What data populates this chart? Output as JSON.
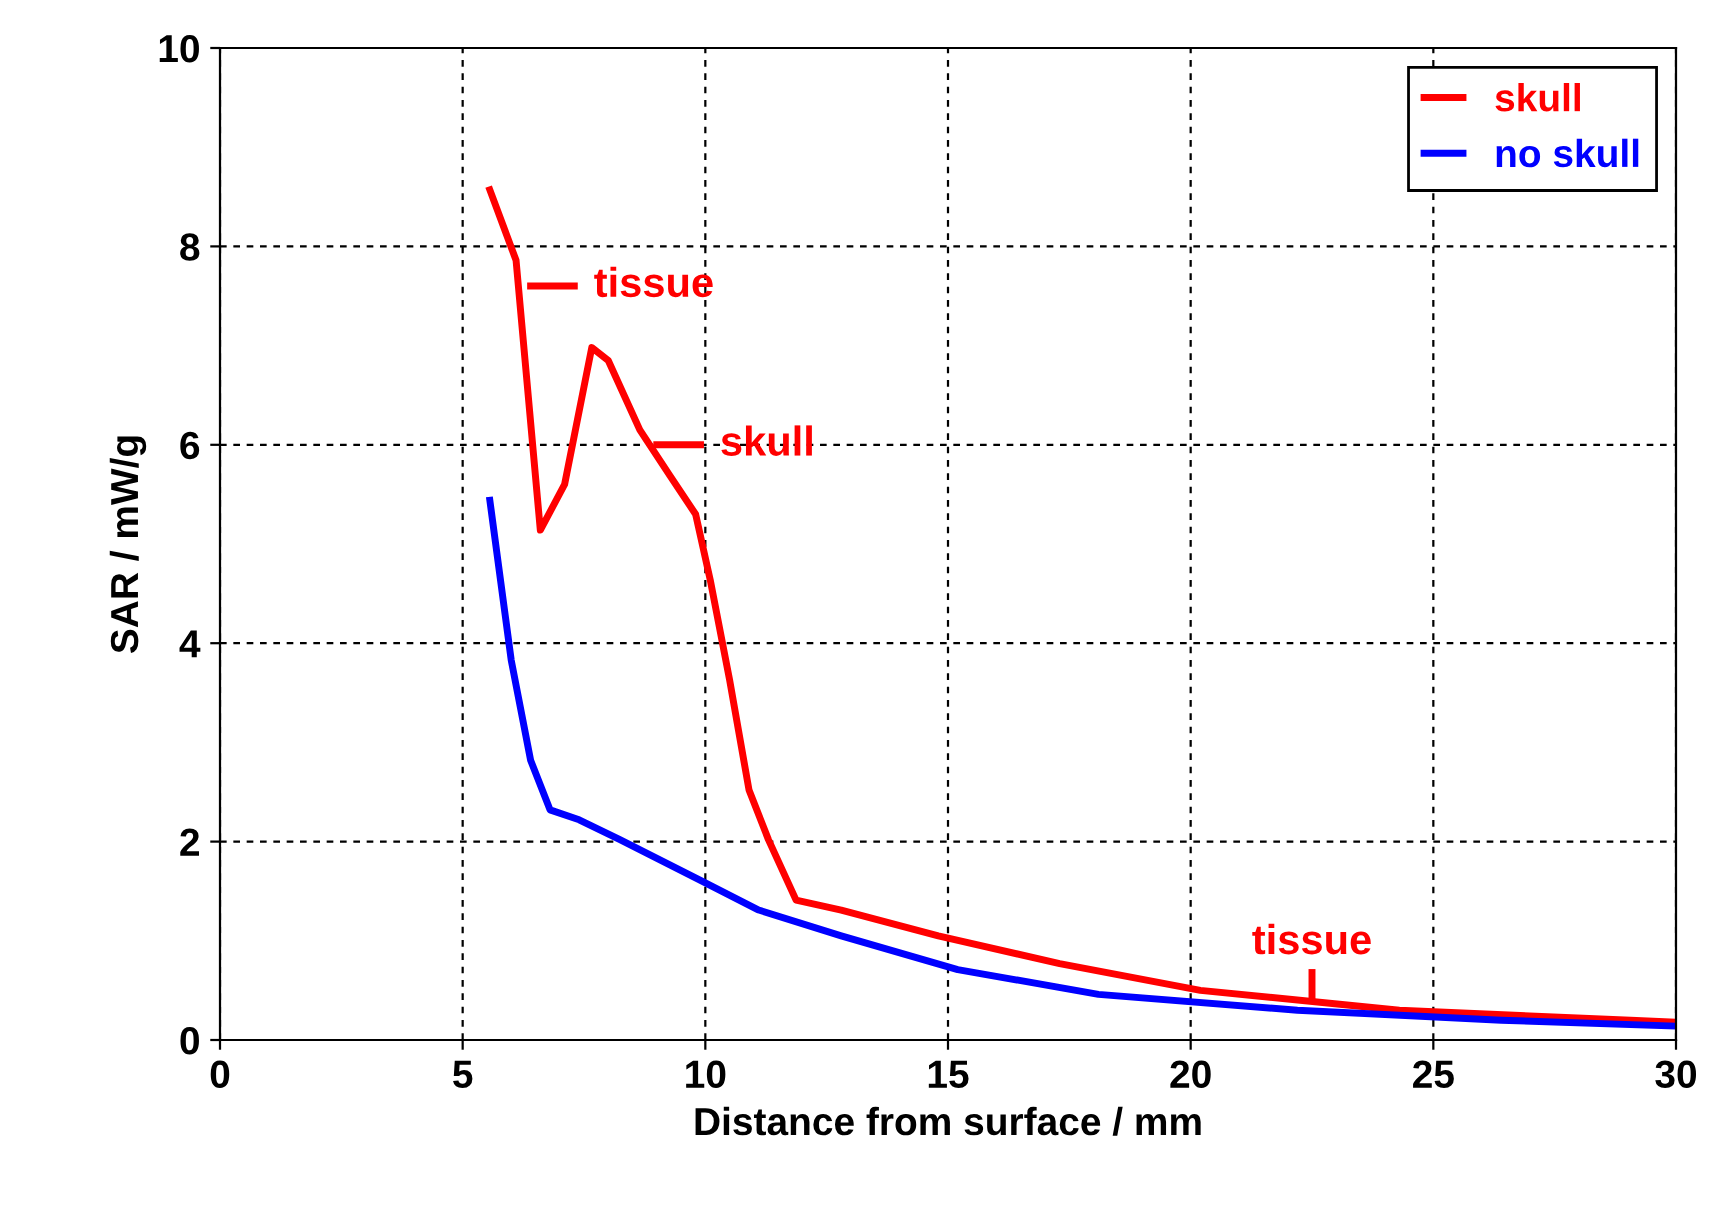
{
  "chart_data": {
    "type": "line",
    "xlabel": "Distance from surface / mm",
    "ylabel": "SAR / mW/g",
    "xlim": [
      0,
      30
    ],
    "ylim": [
      0,
      10
    ],
    "xticks": [
      0,
      5,
      10,
      15,
      20,
      25,
      30
    ],
    "yticks": [
      0,
      2,
      4,
      6,
      8,
      10
    ],
    "grid": true,
    "legend": "top right",
    "marker": "none",
    "line_style": "solid",
    "series": [
      {
        "name": "skull",
        "color": "#ff0000",
        "x": [
          5.56,
          6.1,
          6.6,
          7.1,
          7.66,
          8.0,
          8.65,
          9.27,
          9.8,
          10.1,
          10.5,
          10.9,
          11.3,
          11.87,
          12.8,
          14.8,
          17.3,
          20.2,
          24.3,
          30
        ],
        "values": [
          8.57,
          7.86,
          5.14,
          5.6,
          6.98,
          6.85,
          6.15,
          5.69,
          5.3,
          4.64,
          3.63,
          2.52,
          2.02,
          1.41,
          1.31,
          1.05,
          0.77,
          0.5,
          0.3,
          0.18
        ]
      },
      {
        "name": "no skull",
        "color": "#0000ff",
        "x": [
          5.56,
          6.0,
          6.4,
          6.8,
          7.4,
          8.24,
          9.9,
          11.1,
          12.8,
          15.2,
          18.1,
          22.2,
          26.4,
          30
        ],
        "values": [
          5.44,
          3.83,
          2.82,
          2.32,
          2.22,
          2.02,
          1.61,
          1.31,
          1.05,
          0.71,
          0.46,
          0.3,
          0.2,
          0.14
        ]
      }
    ],
    "annotations": [
      {
        "text": "tissue",
        "x": 6.4,
        "y": 7.6
      },
      {
        "text": "skull",
        "x": 9.0,
        "y": 6.0
      },
      {
        "text": "tissue",
        "x": 22.5,
        "y": 0.38
      }
    ]
  }
}
